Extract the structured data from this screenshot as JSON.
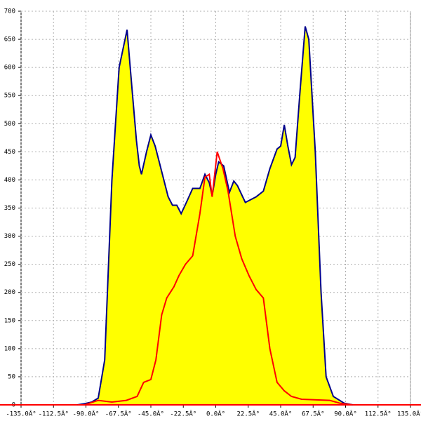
{
  "chart_data": {
    "type": "area",
    "xlim": [
      -135,
      135
    ],
    "xticks": [
      {
        "value": -135,
        "label": "-135.0Â°"
      },
      {
        "value": -112.5,
        "label": "-112.5Â°"
      },
      {
        "value": -90,
        "label": "-90.0Â°"
      },
      {
        "value": -67.5,
        "label": "-67.5Â°"
      },
      {
        "value": -45,
        "label": "-45.0Â°"
      },
      {
        "value": -22.5,
        "label": "-22.5Â°"
      },
      {
        "value": 0,
        "label": "0.0Â°"
      },
      {
        "value": 22.5,
        "label": "22.5Â°"
      },
      {
        "value": 45,
        "label": "45.0Â°"
      },
      {
        "value": 67.5,
        "label": "67.5Â°"
      },
      {
        "value": 90,
        "label": "90.0Â°"
      },
      {
        "value": 112.5,
        "label": "112.5Â°"
      },
      {
        "value": 135,
        "label": "135.0Â°"
      }
    ],
    "ylim": [
      0,
      700
    ],
    "yticks": [
      0,
      50,
      100,
      150,
      200,
      250,
      300,
      350,
      400,
      450,
      500,
      550,
      600,
      650,
      700
    ],
    "grid": true,
    "series": [
      {
        "color": "#00008b",
        "fill": "#ffff00",
        "x": [
          -96,
          -91,
          -86,
          -81.5,
          -77,
          -72,
          -67,
          -61.5,
          -58,
          -55,
          -53,
          -51.5,
          -48,
          -45,
          -42,
          -38,
          -33,
          -30,
          -27,
          -24,
          -20,
          -16,
          -11,
          -7.5,
          -4.5,
          -2.5,
          0,
          2,
          5.5,
          9.5,
          12.5,
          15,
          20.5,
          28,
          33,
          37.5,
          42.5,
          45,
          47.5,
          50,
          52.5,
          55,
          58.5,
          62,
          64.5,
          69,
          73,
          76.5,
          81.5,
          89,
          95
        ],
        "values": [
          0,
          2,
          5,
          12,
          80,
          400,
          600,
          667,
          560,
          470,
          425,
          410,
          450,
          480,
          460,
          420,
          370,
          355,
          355,
          340,
          362,
          385,
          385,
          410,
          395,
          372,
          410,
          432,
          425,
          378,
          398,
          390,
          360,
          370,
          380,
          420,
          455,
          460,
          498,
          460,
          427,
          440,
          560,
          673,
          650,
          450,
          200,
          50,
          15,
          3,
          0
        ]
      },
      {
        "color": "#ff0000",
        "x": [
          -96,
          -91,
          -81.5,
          -72,
          -62,
          -54.5,
          -50,
          -45,
          -41.5,
          -37.5,
          -34,
          -29,
          -25.5,
          -21,
          -16,
          -11,
          -7.5,
          -4.5,
          -2.5,
          1,
          5,
          8.5,
          13.5,
          18,
          23,
          28,
          33,
          37.5,
          42.5,
          47.5,
          52.5,
          59.5,
          79,
          86,
          95
        ],
        "values": [
          0,
          0,
          8,
          5,
          8,
          15,
          40,
          45,
          80,
          160,
          190,
          210,
          230,
          250,
          265,
          340,
          405,
          410,
          370,
          450,
          420,
          380,
          300,
          260,
          230,
          205,
          190,
          100,
          40,
          25,
          15,
          10,
          8,
          3,
          0
        ]
      }
    ]
  }
}
